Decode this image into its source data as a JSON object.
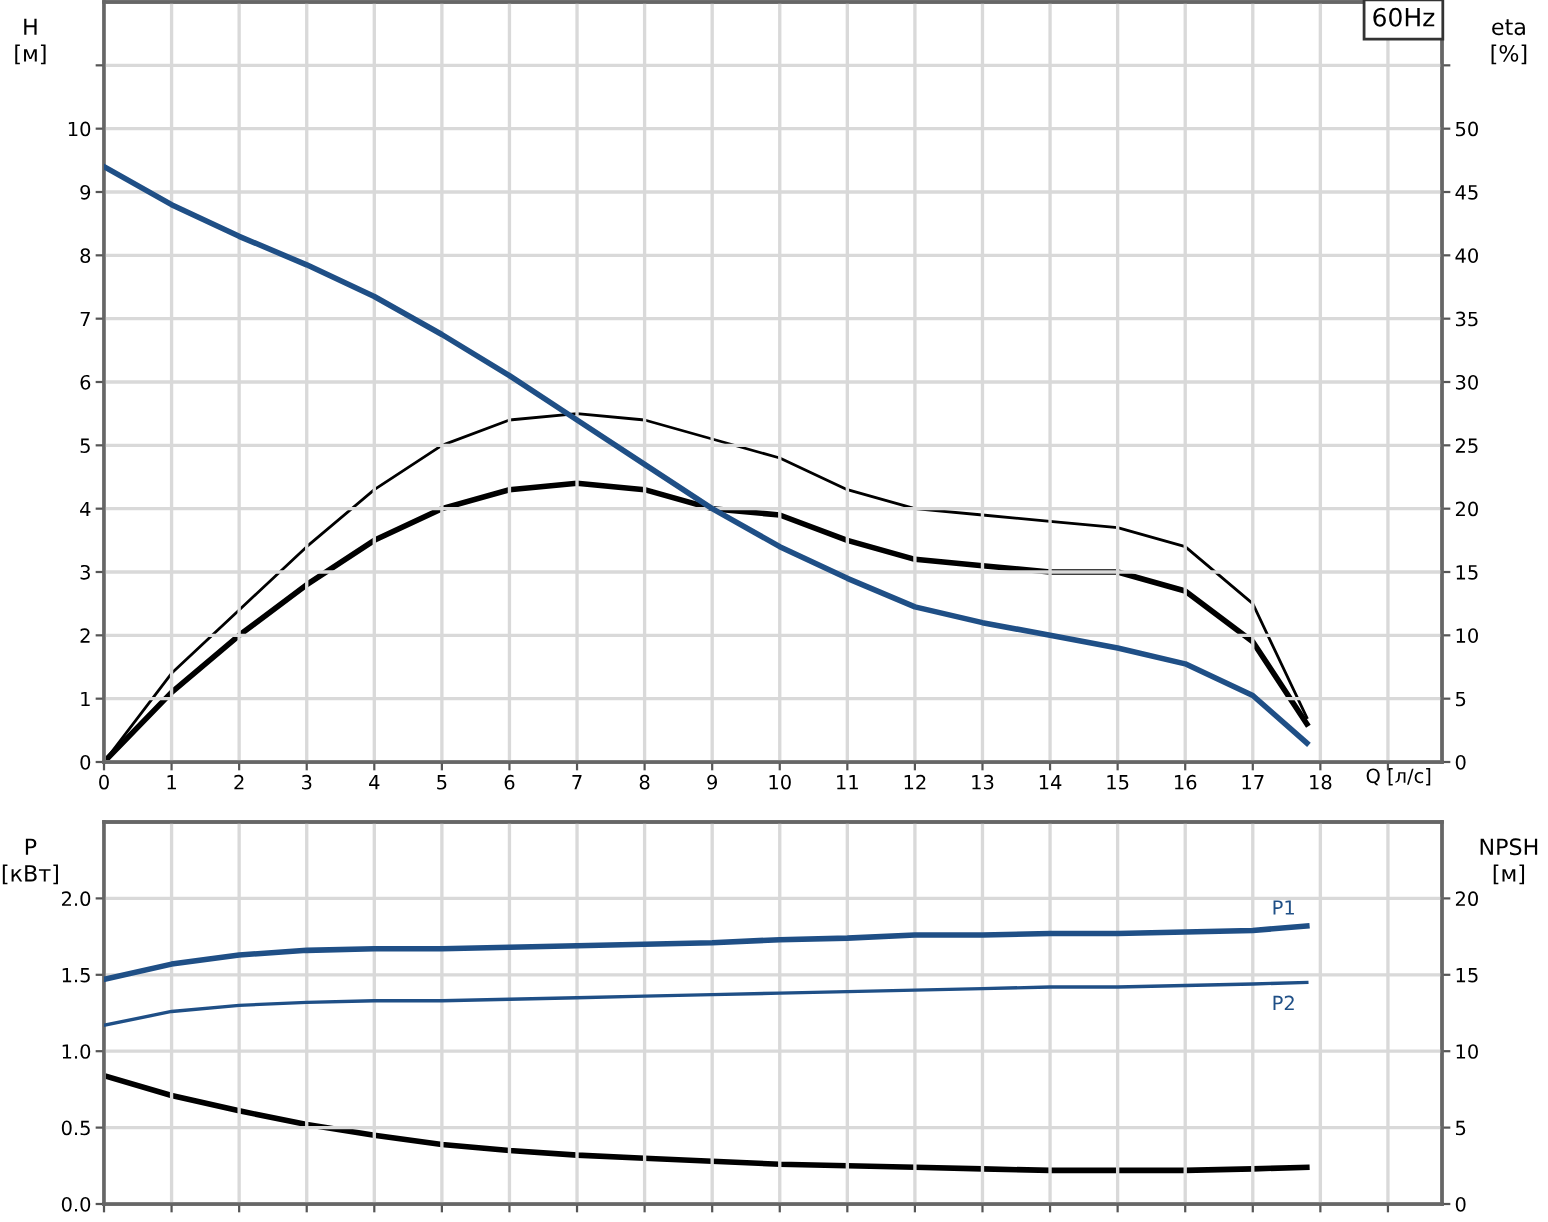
{
  "chart_data": [
    {
      "type": "line",
      "xlabel": "Q [л/с]",
      "ylabel": "H\n[м]",
      "y2label": "eta\n[%]",
      "annotations": [
        "60Hz"
      ],
      "xlim": [
        0,
        19.8
      ],
      "xticks": [
        0,
        1,
        2,
        3,
        4,
        5,
        6,
        7,
        8,
        9,
        10,
        11,
        12,
        13,
        14,
        15,
        16,
        17,
        18,
        {
          "value": 19,
          "label": null
        }
      ],
      "ylim": [
        0,
        12
      ],
      "yticks": [
        0,
        1,
        2,
        3,
        4,
        5,
        6,
        7,
        8,
        9,
        10,
        {
          "value": 11,
          "label": null
        }
      ],
      "y2lim": [
        0,
        60
      ],
      "y2ticks": [
        0,
        5,
        10,
        15,
        20,
        25,
        30,
        35,
        40,
        45,
        50,
        {
          "value": 55,
          "label": null
        }
      ],
      "grid": true,
      "marker": "none",
      "line_style": "solid",
      "x": [
        0,
        1,
        2,
        3,
        4,
        5,
        6,
        7,
        8,
        9,
        10,
        11,
        12,
        13,
        14,
        15,
        16,
        17,
        17.8
      ],
      "series": [
        {
          "color": "#1f4f86",
          "values": [
            9.4,
            8.8,
            8.3,
            7.85,
            7.35,
            6.75,
            6.1,
            5.4,
            4.7,
            4.0,
            3.4,
            2.9,
            2.45,
            2.2,
            2.0,
            1.8,
            1.55,
            1.05,
            0.3
          ]
        },
        {
          "color": "#000000",
          "axis": "y2",
          "values": [
            0,
            7,
            12,
            17,
            21.5,
            25,
            27,
            27.5,
            27,
            25.5,
            24,
            21.5,
            20,
            19.5,
            19,
            18.5,
            17,
            12.5,
            3.5
          ]
        },
        {
          "color": "#000000",
          "axis": "y2",
          "values": [
            0,
            5.5,
            10,
            14,
            17.5,
            20,
            21.5,
            22,
            21.5,
            20,
            19.5,
            17.5,
            16,
            15.5,
            15,
            15,
            13.5,
            9.5,
            3
          ]
        }
      ]
    },
    {
      "type": "line",
      "ylabel": "P\n[кВт]",
      "y2label": "NPSH\n[м]",
      "tick_labels": "y",
      "xlim": [
        0,
        19.8
      ],
      "xticks": [
        0,
        1,
        2,
        3,
        4,
        5,
        6,
        7,
        8,
        9,
        10,
        11,
        12,
        13,
        14,
        15,
        16,
        17,
        18,
        19
      ],
      "ylim": [
        0,
        2.5
      ],
      "yticks": [
        {
          "value": 0,
          "label": "0.0"
        },
        0.5,
        {
          "value": 1,
          "label": "1.0"
        },
        1.5,
        {
          "value": 2,
          "label": "2.0"
        }
      ],
      "y2lim": [
        0,
        25
      ],
      "y2ticks": [
        0,
        5,
        10,
        15,
        20
      ],
      "grid": true,
      "marker": "none",
      "line_style": "solid",
      "x": [
        0,
        1,
        2,
        3,
        4,
        5,
        6,
        7,
        8,
        9,
        10,
        11,
        12,
        13,
        14,
        15,
        16,
        17,
        17.8
      ],
      "series": [
        {
          "name": "P1",
          "color": "#1f4f86",
          "values": [
            1.47,
            1.57,
            1.63,
            1.66,
            1.67,
            1.67,
            1.68,
            1.69,
            1.7,
            1.71,
            1.73,
            1.74,
            1.76,
            1.76,
            1.77,
            1.77,
            1.78,
            1.79,
            1.82
          ]
        },
        {
          "name": "P2",
          "color": "#1f4f86",
          "values": [
            1.17,
            1.26,
            1.3,
            1.32,
            1.33,
            1.33,
            1.34,
            1.35,
            1.36,
            1.37,
            1.38,
            1.39,
            1.4,
            1.41,
            1.42,
            1.42,
            1.43,
            1.44,
            1.45
          ]
        },
        {
          "color": "#000000",
          "axis": "y2",
          "values": [
            8.4,
            7.1,
            6.1,
            5.2,
            4.5,
            3.9,
            3.5,
            3.2,
            3.0,
            2.8,
            2.6,
            2.5,
            2.4,
            2.3,
            2.2,
            2.2,
            2.2,
            2.3,
            2.4
          ]
        }
      ]
    }
  ]
}
